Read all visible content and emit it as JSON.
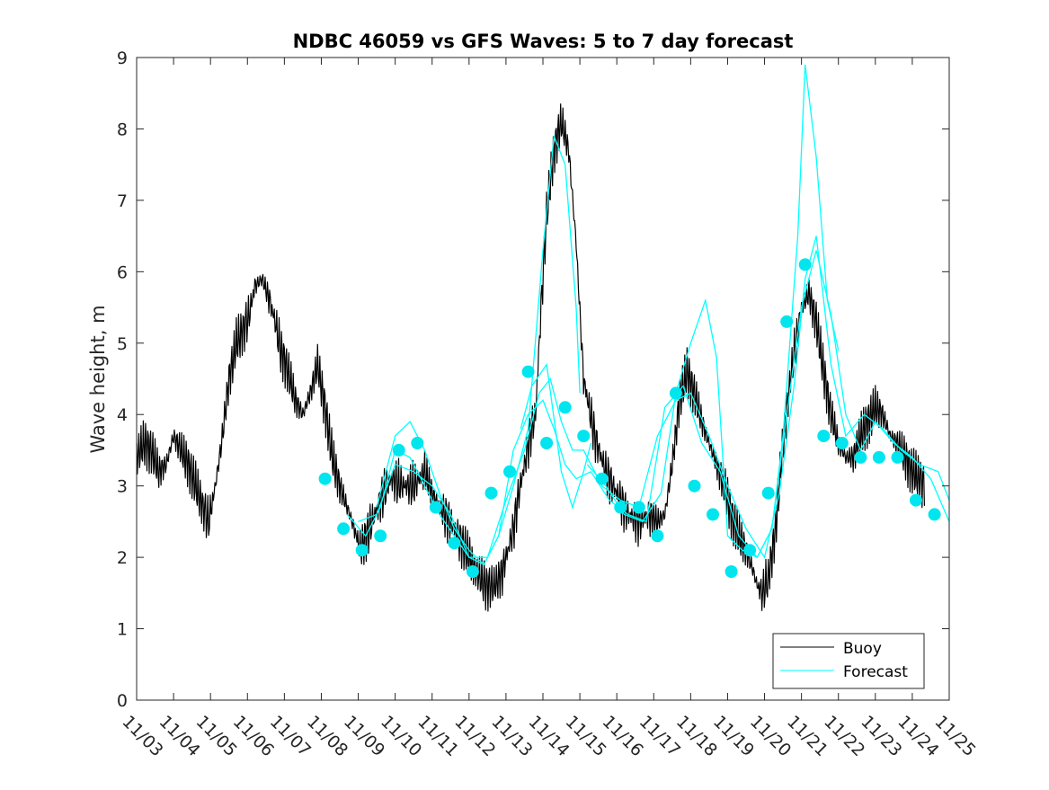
{
  "chart_data": {
    "type": "line",
    "title": "NDBC 46059 vs GFS Waves: 5 to 7 day forecast",
    "xlabel": "",
    "ylabel": "Wave height, m",
    "xlim": [
      3,
      25
    ],
    "ylim": [
      0,
      9
    ],
    "yticks": [
      0,
      1,
      2,
      3,
      4,
      5,
      6,
      7,
      8,
      9
    ],
    "xticks": [
      3,
      4,
      5,
      6,
      7,
      8,
      9,
      10,
      11,
      12,
      13,
      14,
      15,
      16,
      17,
      18,
      19,
      20,
      21,
      22,
      23,
      24,
      25
    ],
    "xtick_labels": [
      "11/03",
      "11/04",
      "11/05",
      "11/06",
      "11/07",
      "11/08",
      "11/09",
      "11/10",
      "11/11",
      "11/12",
      "11/13",
      "11/14",
      "11/15",
      "11/16",
      "11/17",
      "11/18",
      "11/19",
      "11/20",
      "11/21",
      "11/22",
      "11/23",
      "11/24",
      "11/25"
    ],
    "x_units": "day of November",
    "legend": {
      "position": "bottom-right",
      "entries": [
        "Buoy",
        "Forecast"
      ]
    },
    "colors": {
      "buoy": "#000000",
      "forecast": "#00ffff",
      "markers": "#00e5ee",
      "axes": "#262626"
    },
    "series": [
      {
        "name": "Buoy",
        "x": [
          3.0,
          3.2,
          3.4,
          3.6,
          3.8,
          4.0,
          4.2,
          4.4,
          4.6,
          4.8,
          4.95,
          5.1,
          5.3,
          5.5,
          5.7,
          5.9,
          6.05,
          6.2,
          6.4,
          6.6,
          6.75,
          6.9,
          7.1,
          7.3,
          7.5,
          7.7,
          7.9,
          8.1,
          8.3,
          8.5,
          8.7,
          8.9,
          9.05,
          9.3,
          9.6,
          9.9,
          10.2,
          10.5,
          10.8,
          11.0,
          11.2,
          11.5,
          11.8,
          12.0,
          12.2,
          12.45,
          12.7,
          12.9,
          13.05,
          13.2,
          13.35,
          13.5,
          13.65,
          13.8,
          13.95,
          14.1,
          14.3,
          14.5,
          14.7,
          14.9,
          15.1,
          15.4,
          15.7,
          16.0,
          16.3,
          16.6,
          16.9,
          17.1,
          17.3,
          17.5,
          17.7,
          17.9,
          18.1,
          18.3,
          18.5,
          18.7,
          18.9,
          19.1,
          19.3,
          19.5,
          19.7,
          19.8,
          19.95,
          20.1,
          20.3,
          20.5,
          20.7,
          20.85,
          21.0,
          21.2,
          21.4,
          21.6,
          21.8,
          22.0,
          22.2,
          22.4,
          22.6,
          22.8,
          23.0,
          23.2,
          23.4,
          23.6,
          23.8,
          24.0,
          24.2,
          24.35
        ],
        "values": [
          3.4,
          3.6,
          3.5,
          3.2,
          3.3,
          3.7,
          3.5,
          3.3,
          3.0,
          2.7,
          2.5,
          2.9,
          3.6,
          4.5,
          5.0,
          5.2,
          5.4,
          5.8,
          5.9,
          5.6,
          5.3,
          4.9,
          4.6,
          4.2,
          4.0,
          4.3,
          4.7,
          4.1,
          3.4,
          3.0,
          2.7,
          2.4,
          2.1,
          2.4,
          2.8,
          3.1,
          3.0,
          3.0,
          3.2,
          2.9,
          2.7,
          2.5,
          2.2,
          2.0,
          1.8,
          1.6,
          1.6,
          1.8,
          2.1,
          2.4,
          2.9,
          3.3,
          3.7,
          4.0,
          5.5,
          6.8,
          7.7,
          8.1,
          7.7,
          6.4,
          4.5,
          3.7,
          3.2,
          2.9,
          2.6,
          2.5,
          2.6,
          2.5,
          2.6,
          3.3,
          4.2,
          4.6,
          4.3,
          3.9,
          3.6,
          3.3,
          3.0,
          2.6,
          2.3,
          2.1,
          1.8,
          1.6,
          1.5,
          1.7,
          2.4,
          3.6,
          4.5,
          5.0,
          5.5,
          5.7,
          5.3,
          4.6,
          4.0,
          3.6,
          3.4,
          3.4,
          3.7,
          3.9,
          4.1,
          4.0,
          3.7,
          3.6,
          3.4,
          3.2,
          3.1,
          3.0
        ]
      },
      {
        "name": "Forecast",
        "runs": [
          {
            "x": [
              9.0,
              9.5,
              10.0,
              10.5,
              11.0,
              11.5,
              12.0,
              12.5,
              13.0,
              13.5,
              13.9,
              14.2,
              14.5,
              14.8,
              15.1,
              15.6,
              16.1,
              16.6,
              17.1,
              17.6,
              18.0,
              18.5,
              19.0,
              19.5,
              20.0,
              20.4,
              20.8,
              21.1,
              21.4,
              21.8,
              22.2,
              22.7,
              23.2,
              23.7,
              24.2,
              24.7,
              25.0
            ],
            "values": [
              2.5,
              2.6,
              3.3,
              3.2,
              3.0,
              2.6,
              2.0,
              2.0,
              2.8,
              3.5,
              4.3,
              4.5,
              3.9,
              3.5,
              3.5,
              3.0,
              2.8,
              2.7,
              3.7,
              4.2,
              4.3,
              3.7,
              3.0,
              2.4,
              2.0,
              2.9,
              4.4,
              5.9,
              6.5,
              4.7,
              3.7,
              4.0,
              3.8,
              3.5,
              3.3,
              3.2,
              2.8
            ]
          },
          {
            "x": [
              8.7,
              9.2,
              9.6,
              10.0,
              10.4,
              10.8,
              11.2,
              11.6,
              12.0,
              12.4,
              12.8,
              13.2,
              13.6,
              14.0,
              14.3,
              14.6,
              14.9,
              15.3,
              15.8,
              16.3,
              16.8,
              17.3,
              17.8,
              18.3,
              18.8,
              19.3,
              19.8,
              20.2,
              20.6,
              21.0,
              21.4,
              21.8,
              22.2,
              22.6,
              23.0,
              23.5,
              24.0,
              24.5,
              25.0
            ],
            "values": [
              2.6,
              2.3,
              2.7,
              3.5,
              3.4,
              3.0,
              2.6,
              2.3,
              2.0,
              1.9,
              2.3,
              3.5,
              4.0,
              4.2,
              3.8,
              3.3,
              3.1,
              3.2,
              2.8,
              2.6,
              2.5,
              4.1,
              4.4,
              3.6,
              3.2,
              2.3,
              2.0,
              2.4,
              4.0,
              5.5,
              6.3,
              5.4,
              4.0,
              3.5,
              3.9,
              3.6,
              3.4,
              3.1,
              2.5
            ]
          },
          {
            "x": [
              9.5,
              10.0,
              10.4,
              10.8,
              11.2,
              11.6,
              12.0,
              12.4,
              12.8,
              13.2,
              13.6,
              14.0,
              14.3,
              14.6,
              14.9,
              15.0
            ],
            "values": [
              2.7,
              3.7,
              3.9,
              3.5,
              2.9,
              2.4,
              2.1,
              1.9,
              2.3,
              3.0,
              3.8,
              6.3,
              7.9,
              7.5,
              5.5,
              4.3
            ]
          },
          {
            "x": [
              15.2,
              15.7,
              16.2,
              16.7,
              17.2,
              17.6,
              18.0,
              18.4,
              18.7,
              19.0,
              19.4,
              19.8,
              20.2,
              20.5,
              20.9,
              21.1,
              21.4,
              21.7,
              22.0
            ],
            "values": [
              3.3,
              3.0,
              2.6,
              2.5,
              2.9,
              4.3,
              5.0,
              5.6,
              4.8,
              2.3,
              2.1,
              2.0,
              2.4,
              3.7,
              6.5,
              8.9,
              7.6,
              5.6,
              4.9
            ]
          },
          {
            "x": [
              13.4,
              13.7,
              14.1,
              14.5,
              14.8,
              15.1,
              15.3
            ],
            "values": [
              3.8,
              4.4,
              4.7,
              3.2,
              2.7,
              3.2,
              3.6
            ]
          }
        ],
        "markers": {
          "x": [
            8.1,
            8.6,
            9.1,
            9.6,
            10.1,
            10.6,
            11.1,
            11.6,
            12.1,
            12.6,
            13.1,
            13.6,
            14.1,
            14.6,
            15.1,
            15.6,
            16.1,
            16.6,
            17.1,
            17.6,
            18.1,
            18.6,
            19.1,
            19.6,
            20.1,
            20.6,
            21.1,
            21.6,
            22.1,
            22.6,
            23.1,
            23.6,
            24.1,
            24.6
          ],
          "values": [
            3.1,
            2.4,
            2.1,
            2.3,
            3.5,
            3.6,
            2.7,
            2.2,
            1.8,
            2.9,
            3.2,
            4.6,
            3.6,
            4.1,
            3.7,
            3.1,
            2.7,
            2.7,
            2.3,
            4.3,
            3.0,
            2.6,
            1.8,
            2.1,
            2.9,
            5.3,
            6.1,
            3.7,
            3.6,
            3.4,
            3.4,
            3.4,
            2.8,
            2.6
          ]
        }
      }
    ]
  }
}
